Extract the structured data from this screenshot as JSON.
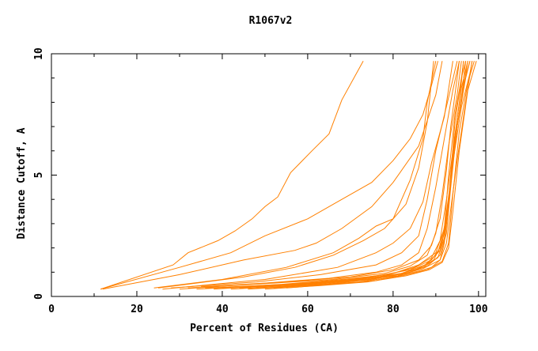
{
  "chart_data": {
    "type": "line",
    "title": "R1067v2",
    "xlabel": "Percent of Residues (CA)",
    "ylabel": "Distance Cutoff, A",
    "xlim": [
      0,
      101.7
    ],
    "ylim": [
      0,
      10
    ],
    "x_ticks": [
      0,
      20,
      40,
      60,
      80,
      100
    ],
    "x_minor_ticks": [
      10,
      30,
      50,
      70,
      90
    ],
    "y_ticks": [
      0,
      5,
      10
    ],
    "y_minor_ticks": [
      1,
      2,
      3,
      4,
      6,
      7,
      8,
      9
    ],
    "grid": false,
    "line_color": "#ff8000",
    "series": [
      {
        "points": [
          [
            11.5,
            0.3
          ],
          [
            28.5,
            1.3
          ],
          [
            32,
            1.8
          ],
          [
            39,
            2.3
          ],
          [
            43,
            2.7
          ],
          [
            47,
            3.2
          ],
          [
            50,
            3.7
          ],
          [
            53,
            4.1
          ],
          [
            56,
            5.1
          ],
          [
            61,
            6.0
          ],
          [
            65,
            6.7
          ],
          [
            68,
            8.1
          ],
          [
            73,
            9.7
          ]
        ]
      },
      {
        "points": [
          [
            11.5,
            0.3
          ],
          [
            30,
            1.2
          ],
          [
            42,
            1.8
          ],
          [
            50,
            2.5
          ],
          [
            60,
            3.2
          ],
          [
            66,
            3.8
          ],
          [
            75,
            4.7
          ],
          [
            80,
            5.6
          ],
          [
            84,
            6.5
          ],
          [
            87,
            7.5
          ],
          [
            89,
            8.7
          ],
          [
            90.5,
            9.7
          ]
        ]
      },
      {
        "points": [
          [
            12,
            0.3
          ],
          [
            30,
            0.9
          ],
          [
            45,
            1.5
          ],
          [
            57,
            1.9
          ],
          [
            62,
            2.2
          ],
          [
            68,
            2.8
          ],
          [
            75,
            3.7
          ],
          [
            80,
            4.7
          ],
          [
            86,
            6.2
          ],
          [
            90,
            8.3
          ],
          [
            91.5,
            9.7
          ]
        ]
      },
      {
        "points": [
          [
            24,
            0.35
          ],
          [
            40,
            0.7
          ],
          [
            55,
            1.2
          ],
          [
            66,
            1.8
          ],
          [
            72,
            2.4
          ],
          [
            76,
            2.9
          ],
          [
            80,
            3.2
          ],
          [
            83,
            3.8
          ],
          [
            86,
            5.3
          ],
          [
            88,
            7.2
          ],
          [
            89.5,
            9.7
          ]
        ]
      },
      {
        "points": [
          [
            25,
            0.35
          ],
          [
            45,
            0.8
          ],
          [
            57,
            1.2
          ],
          [
            66,
            1.7
          ],
          [
            73,
            2.3
          ],
          [
            78,
            2.8
          ],
          [
            80,
            3.2
          ],
          [
            84,
            4.8
          ],
          [
            87,
            6.5
          ],
          [
            88,
            8.0
          ],
          [
            90,
            9.7
          ]
        ]
      },
      {
        "points": [
          [
            26,
            0.3
          ],
          [
            50,
            0.7
          ],
          [
            67,
            1.2
          ],
          [
            76,
            1.8
          ],
          [
            80,
            2.2
          ],
          [
            84,
            2.8
          ],
          [
            87,
            3.9
          ],
          [
            89,
            5.5
          ],
          [
            92,
            7.4
          ],
          [
            94,
            9.7
          ]
        ]
      },
      {
        "points": [
          [
            28,
            0.35
          ],
          [
            48,
            0.6
          ],
          [
            63,
            0.9
          ],
          [
            76,
            1.3
          ],
          [
            82,
            1.8
          ],
          [
            86,
            2.5
          ],
          [
            88,
            4.0
          ],
          [
            90,
            6.0
          ],
          [
            93,
            8.2
          ],
          [
            95,
            9.7
          ]
        ]
      },
      {
        "points": [
          [
            30,
            0.3
          ],
          [
            50,
            0.55
          ],
          [
            65,
            0.75
          ],
          [
            76,
            1.0
          ],
          [
            82,
            1.3
          ],
          [
            86,
            1.8
          ],
          [
            88,
            2.8
          ],
          [
            90,
            4.5
          ],
          [
            92,
            6.5
          ],
          [
            94,
            8.5
          ],
          [
            95.5,
            9.7
          ]
        ]
      },
      {
        "points": [
          [
            32,
            0.35
          ],
          [
            52,
            0.55
          ],
          [
            66,
            0.7
          ],
          [
            78,
            0.95
          ],
          [
            84,
            1.25
          ],
          [
            88,
            1.7
          ],
          [
            90,
            2.6
          ],
          [
            91.5,
            4.2
          ],
          [
            93,
            6.2
          ],
          [
            95,
            8.3
          ],
          [
            96,
            9.7
          ]
        ]
      },
      {
        "points": [
          [
            34,
            0.3
          ],
          [
            54,
            0.5
          ],
          [
            68,
            0.7
          ],
          [
            79,
            0.9
          ],
          [
            85,
            1.2
          ],
          [
            89,
            1.6
          ],
          [
            91,
            2.3
          ],
          [
            92.5,
            4.0
          ],
          [
            94,
            6.0
          ],
          [
            95.5,
            8.0
          ],
          [
            96.5,
            9.7
          ]
        ]
      },
      {
        "points": [
          [
            36,
            0.35
          ],
          [
            55,
            0.5
          ],
          [
            68,
            0.65
          ],
          [
            80,
            0.85
          ],
          [
            86,
            1.15
          ],
          [
            89.5,
            1.5
          ],
          [
            91.5,
            2.2
          ],
          [
            93,
            3.8
          ],
          [
            94,
            5.8
          ],
          [
            96,
            8.2
          ],
          [
            97,
            9.7
          ]
        ]
      },
      {
        "points": [
          [
            38,
            0.3
          ],
          [
            56,
            0.5
          ],
          [
            70,
            0.7
          ],
          [
            80,
            0.95
          ],
          [
            86,
            1.3
          ],
          [
            90,
            1.8
          ],
          [
            92,
            2.8
          ],
          [
            93.5,
            4.8
          ],
          [
            95,
            7.0
          ],
          [
            97,
            9.0
          ],
          [
            98,
            9.7
          ]
        ]
      },
      {
        "points": [
          [
            40,
            0.35
          ],
          [
            58,
            0.5
          ],
          [
            70,
            0.65
          ],
          [
            81,
            0.9
          ],
          [
            87,
            1.2
          ],
          [
            90.5,
            1.6
          ],
          [
            92,
            2.4
          ],
          [
            93,
            4.0
          ],
          [
            94.5,
            6.5
          ],
          [
            96.5,
            8.6
          ],
          [
            97.5,
            9.7
          ]
        ]
      },
      {
        "points": [
          [
            42,
            0.3
          ],
          [
            58,
            0.45
          ],
          [
            71,
            0.65
          ],
          [
            81,
            0.85
          ],
          [
            87,
            1.15
          ],
          [
            91,
            1.5
          ],
          [
            92.5,
            2.2
          ],
          [
            93.5,
            3.6
          ],
          [
            95,
            5.6
          ],
          [
            97,
            8.0
          ],
          [
            98.5,
            9.7
          ]
        ]
      },
      {
        "points": [
          [
            44,
            0.35
          ],
          [
            60,
            0.5
          ],
          [
            72,
            0.7
          ],
          [
            82,
            0.95
          ],
          [
            87.5,
            1.3
          ],
          [
            90.5,
            1.8
          ],
          [
            92,
            2.8
          ],
          [
            93,
            5.0
          ],
          [
            94.5,
            7.5
          ],
          [
            96,
            9.0
          ],
          [
            97,
            9.7
          ]
        ]
      },
      {
        "points": [
          [
            46,
            0.3
          ],
          [
            60,
            0.45
          ],
          [
            72,
            0.6
          ],
          [
            82,
            0.85
          ],
          [
            88,
            1.1
          ],
          [
            91.5,
            1.45
          ],
          [
            93,
            2.2
          ],
          [
            94,
            4.2
          ],
          [
            95.5,
            6.8
          ],
          [
            97.5,
            8.8
          ],
          [
            99,
            9.7
          ]
        ]
      },
      {
        "points": [
          [
            48,
            0.35
          ],
          [
            62,
            0.5
          ],
          [
            74,
            0.7
          ],
          [
            83,
            0.95
          ],
          [
            88,
            1.25
          ],
          [
            91,
            1.7
          ],
          [
            92.5,
            2.6
          ],
          [
            93.5,
            4.5
          ],
          [
            95,
            7.0
          ],
          [
            96.5,
            8.8
          ],
          [
            98,
            9.7
          ]
        ]
      },
      {
        "points": [
          [
            50,
            0.3
          ],
          [
            63,
            0.45
          ],
          [
            74,
            0.6
          ],
          [
            83,
            0.85
          ],
          [
            88.5,
            1.1
          ],
          [
            91.5,
            1.4
          ],
          [
            93,
            2.0
          ],
          [
            94,
            3.5
          ],
          [
            95.5,
            6.0
          ],
          [
            97.5,
            8.5
          ],
          [
            99.5,
            9.7
          ]
        ]
      },
      {
        "points": [
          [
            52,
            0.35
          ],
          [
            64,
            0.5
          ],
          [
            75,
            0.7
          ],
          [
            84,
            1.0
          ],
          [
            88,
            1.35
          ],
          [
            91,
            1.9
          ],
          [
            92.5,
            3.0
          ],
          [
            93.5,
            5.0
          ],
          [
            94.5,
            7.2
          ],
          [
            96,
            9.0
          ],
          [
            96.5,
            9.7
          ]
        ]
      },
      {
        "points": [
          [
            55,
            0.35
          ],
          [
            66,
            0.5
          ],
          [
            76,
            0.65
          ],
          [
            80,
            0.8
          ],
          [
            86,
            1.05
          ],
          [
            89,
            1.2
          ],
          [
            91,
            1.5
          ],
          [
            92,
            2.2
          ],
          [
            93,
            3.8
          ],
          [
            94,
            6.0
          ],
          [
            96,
            8.6
          ],
          [
            97.5,
            9.7
          ]
        ]
      },
      {
        "points": [
          [
            45,
            0.4
          ],
          [
            62,
            0.55
          ],
          [
            75,
            0.8
          ],
          [
            84,
            1.1
          ],
          [
            89,
            1.5
          ],
          [
            91,
            2.0
          ],
          [
            92.5,
            3.3
          ],
          [
            94,
            5.5
          ],
          [
            96,
            7.8
          ],
          [
            98,
            9.2
          ],
          [
            98.5,
            9.7
          ]
        ]
      },
      {
        "points": [
          [
            35,
            0.4
          ],
          [
            55,
            0.6
          ],
          [
            70,
            0.8
          ],
          [
            80,
            1.1
          ],
          [
            86,
            1.5
          ],
          [
            89,
            2.1
          ],
          [
            91,
            3.2
          ],
          [
            92.5,
            5.2
          ],
          [
            93.5,
            7.0
          ],
          [
            95,
            9.0
          ],
          [
            95.5,
            9.7
          ]
        ]
      }
    ]
  }
}
